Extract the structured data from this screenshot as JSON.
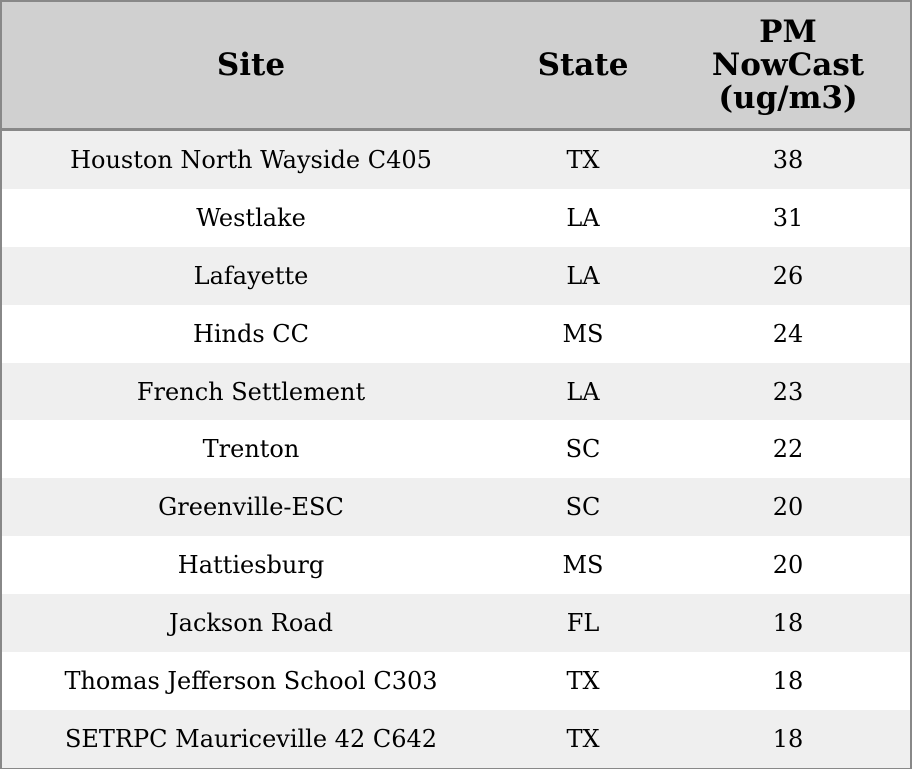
{
  "table": {
    "header": [
      "Site",
      "State",
      "PM NowCast (ug/m3)"
    ],
    "rows": [
      [
        "Houston North Wayside C405",
        "TX",
        38
      ],
      [
        "Westlake",
        "LA",
        31
      ],
      [
        "Lafayette",
        "LA",
        26
      ],
      [
        "Hinds CC",
        "MS",
        24
      ],
      [
        "French Settlement",
        "LA",
        23
      ],
      [
        "Trenton",
        "SC",
        22
      ],
      [
        "Greenville-ESC",
        "SC",
        20
      ],
      [
        "Hattiesburg",
        "MS",
        20
      ],
      [
        "Jackson Road",
        "FL",
        18
      ],
      [
        "Thomas Jefferson School C303",
        "TX",
        18
      ],
      [
        "SETRPC Mauriceville 42 C642",
        "TX",
        18
      ]
    ]
  }
}
